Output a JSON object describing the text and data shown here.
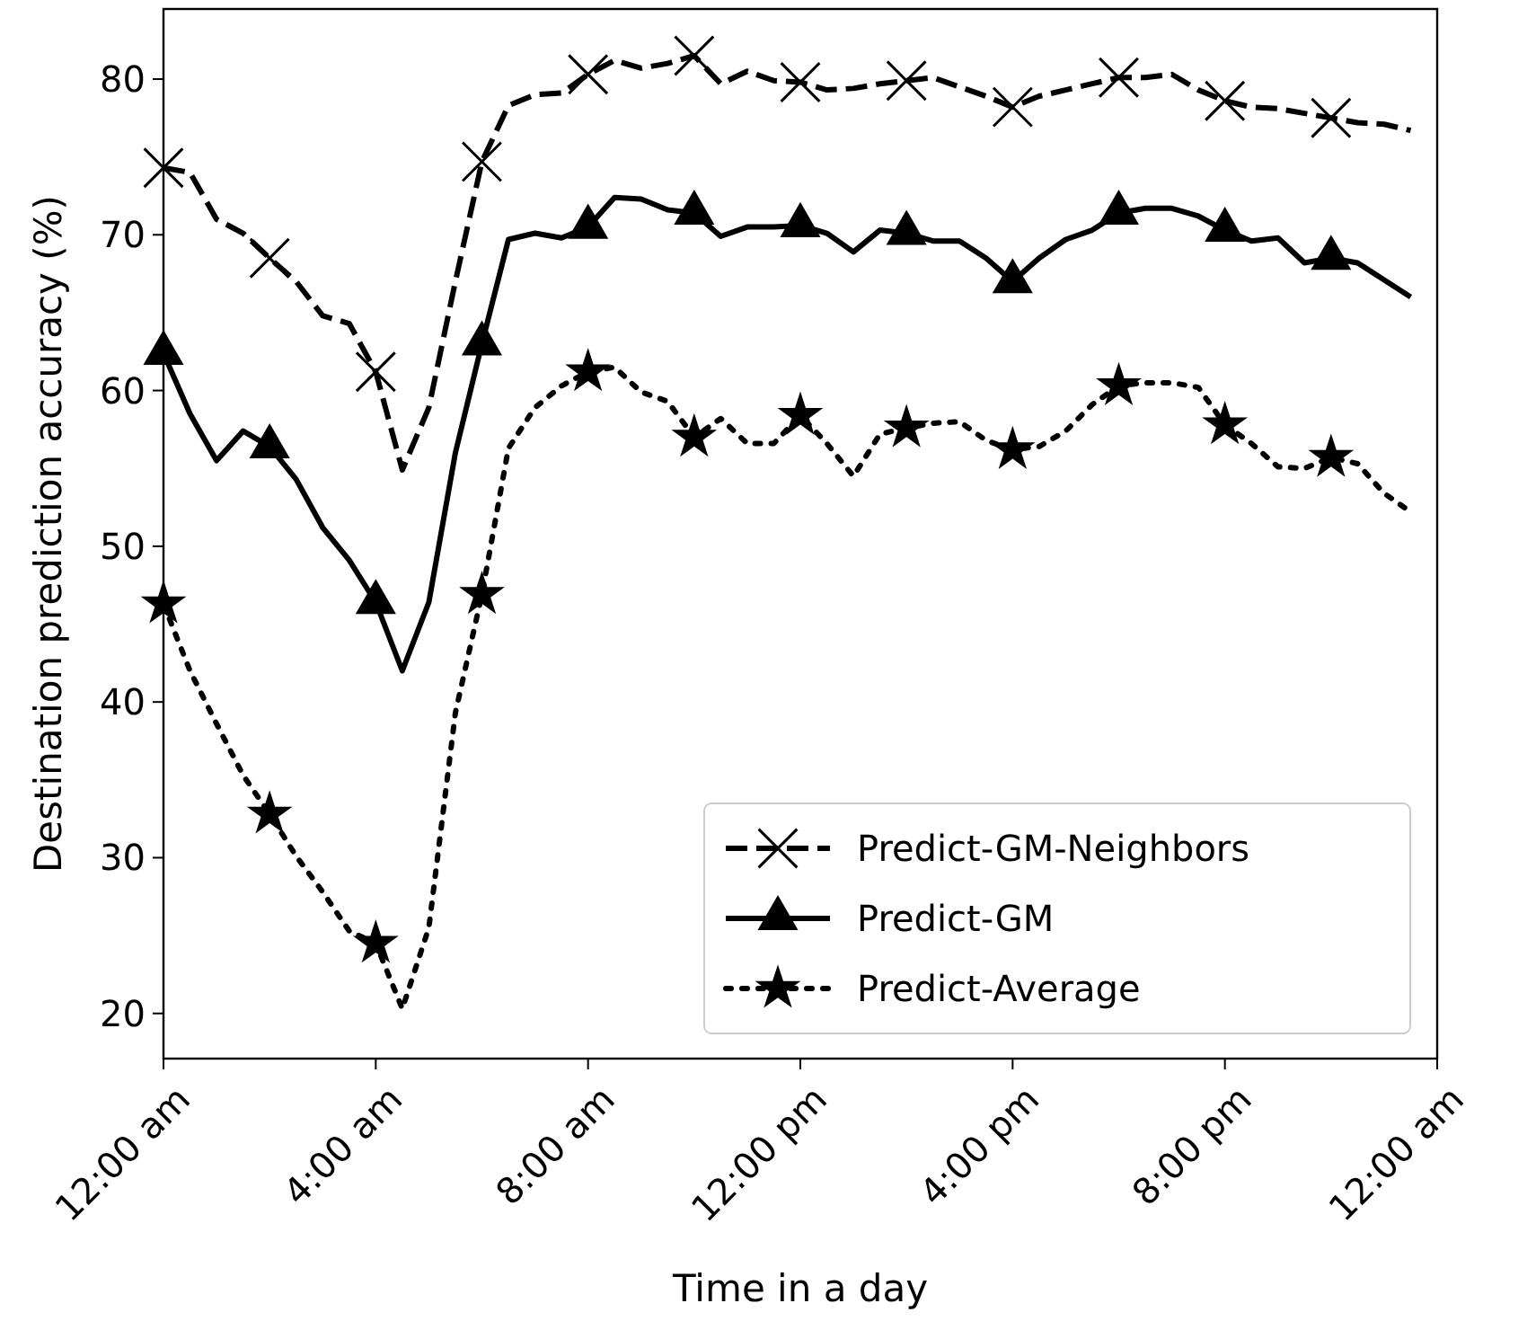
{
  "chart_data": {
    "type": "line",
    "xlabel": "Time in a day",
    "ylabel": "Destination prediction accuracy (%)",
    "x": [
      0,
      0.5,
      1,
      1.5,
      2,
      2.5,
      3,
      3.5,
      4,
      4.5,
      5,
      5.5,
      6,
      6.5,
      7,
      7.5,
      8,
      8.5,
      9,
      9.5,
      10,
      10.5,
      11,
      11.5,
      12,
      12.5,
      13,
      13.5,
      14,
      14.5,
      15,
      15.5,
      16,
      16.5,
      17,
      17.5,
      18,
      18.5,
      19,
      19.5,
      20,
      20.5,
      21,
      21.5,
      22,
      22.5,
      23,
      23.5
    ],
    "series": [
      {
        "name": "Predict-GM-Neighbors",
        "color": "#000000",
        "line_style": "dashed",
        "marker": "none",
        "values": [
          74.3,
          74.0,
          71.0,
          70.1,
          68.5,
          67.0,
          64.8,
          64.3,
          61.2,
          54.9,
          58.9,
          67.0,
          74.7,
          78.3,
          79.0,
          79.1,
          80.3,
          81.2,
          80.7,
          81.0,
          81.5,
          79.7,
          80.5,
          79.9,
          79.8,
          79.3,
          79.4,
          79.7,
          79.9,
          80.1,
          79.5,
          78.9,
          78.2,
          78.9,
          79.3,
          79.7,
          80.1,
          80.1,
          80.3,
          79.3,
          78.6,
          78.2,
          78.1,
          77.8,
          77.5,
          77.2,
          77.1,
          76.7
        ]
      },
      {
        "type": "scatter",
        "color": "#000000",
        "marker": "cross",
        "x": [
          0,
          2,
          4,
          6,
          8,
          10,
          12,
          14,
          16,
          18,
          20,
          22
        ],
        "values": [
          74.3,
          68.5,
          61.2,
          74.7,
          80.3,
          81.5,
          79.8,
          79.9,
          78.2,
          80.1,
          78.6,
          77.5
        ]
      },
      {
        "name": "Predict-GM",
        "color": "#000000",
        "line_style": "solid",
        "marker": "none",
        "values": [
          62.4,
          58.5,
          55.5,
          57.4,
          56.4,
          54.3,
          51.2,
          49.1,
          46.4,
          42.0,
          46.4,
          56.0,
          63.0,
          69.7,
          70.1,
          69.8,
          70.5,
          72.4,
          72.3,
          71.6,
          71.4,
          69.9,
          70.5,
          70.5,
          70.6,
          70.1,
          68.9,
          70.3,
          70.1,
          69.6,
          69.6,
          68.5,
          67.0,
          68.5,
          69.7,
          70.3,
          71.4,
          71.7,
          71.7,
          71.2,
          70.3,
          69.6,
          69.8,
          68.2,
          68.5,
          68.2,
          67.1,
          66.0
        ]
      },
      {
        "type": "scatter",
        "color": "#000000",
        "marker": "triangle",
        "x": [
          0,
          2,
          4,
          6,
          8,
          10,
          12,
          14,
          16,
          18,
          20,
          22
        ],
        "values": [
          62.4,
          56.4,
          46.4,
          63.0,
          70.5,
          71.4,
          70.6,
          70.1,
          67.0,
          71.4,
          70.3,
          68.5
        ]
      },
      {
        "name": "Predict-Average",
        "color": "#000000",
        "line_style": "dotted",
        "marker": "none",
        "values": [
          46.3,
          42.0,
          38.6,
          35.3,
          32.8,
          30.1,
          27.8,
          25.3,
          24.5,
          20.3,
          25.5,
          39.3,
          46.9,
          56.3,
          58.9,
          60.3,
          61.2,
          61.5,
          59.9,
          59.3,
          57.0,
          58.2,
          56.6,
          56.6,
          58.4,
          56.6,
          54.5,
          57.2,
          57.6,
          57.9,
          58.0,
          56.8,
          56.2,
          56.4,
          57.4,
          59.1,
          60.3,
          60.5,
          60.5,
          60.2,
          57.8,
          56.6,
          55.1,
          55.0,
          55.7,
          55.3,
          53.4,
          52.2
        ]
      },
      {
        "type": "scatter",
        "color": "#000000",
        "marker": "star",
        "x": [
          0,
          2,
          4,
          6,
          8,
          10,
          12,
          14,
          16,
          18,
          20,
          22
        ],
        "values": [
          46.3,
          32.8,
          24.5,
          46.9,
          61.2,
          57.0,
          58.4,
          57.6,
          56.2,
          60.3,
          57.8,
          55.7
        ]
      }
    ],
    "xlim": [
      0,
      24
    ],
    "xticks": [
      {
        "value": 0,
        "label": "12:00 am"
      },
      {
        "value": 4,
        "label": "4:00 am"
      },
      {
        "value": 8,
        "label": "8:00 am"
      },
      {
        "value": 12,
        "label": "12:00 pm"
      },
      {
        "value": 16,
        "label": "4:00 pm"
      },
      {
        "value": 20,
        "label": "8:00 pm"
      },
      {
        "value": 24,
        "label": "12:00 am"
      }
    ],
    "ylim": [
      17.1,
      84.5
    ],
    "yticks": [
      20,
      30,
      40,
      50,
      60,
      70,
      80
    ],
    "grid": false,
    "legend": "bottom right"
  }
}
